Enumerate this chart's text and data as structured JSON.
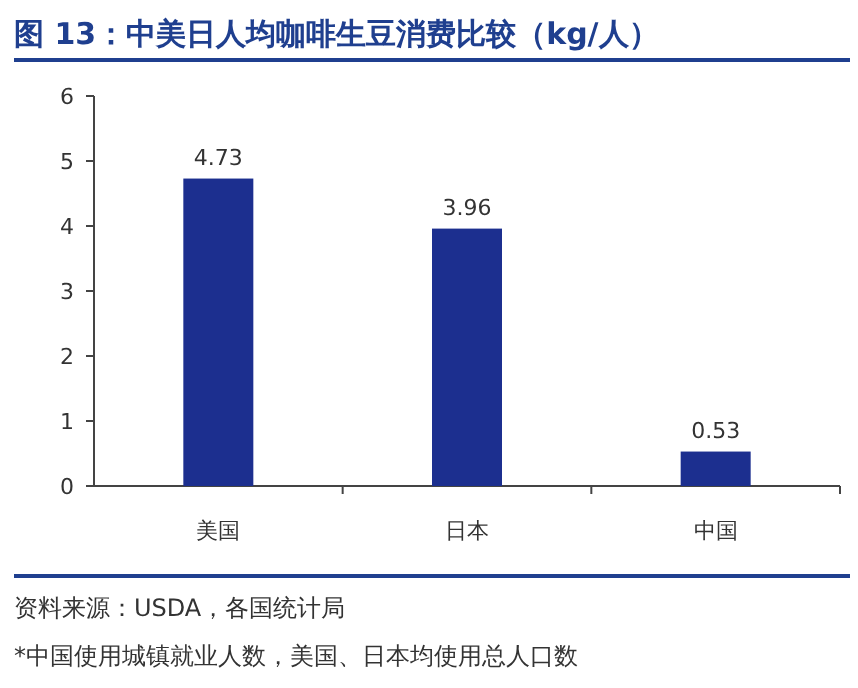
{
  "chart_data": {
    "type": "bar",
    "title": "图 13：中美日人均咖啡生豆消费比较（kg/人）",
    "categories": [
      "美国",
      "日本",
      "中国"
    ],
    "values": [
      4.73,
      3.96,
      0.53
    ],
    "color": "#1c2f8f",
    "ylim": [
      0,
      6
    ],
    "yticks": [
      0,
      1,
      2,
      3,
      4,
      5,
      6
    ],
    "data_labels": true,
    "grid": false,
    "annotations": [
      "资料来源：USDA，各国统计局",
      "*中国使用城镇就业人数，美国、日本均使用总人口数"
    ]
  }
}
